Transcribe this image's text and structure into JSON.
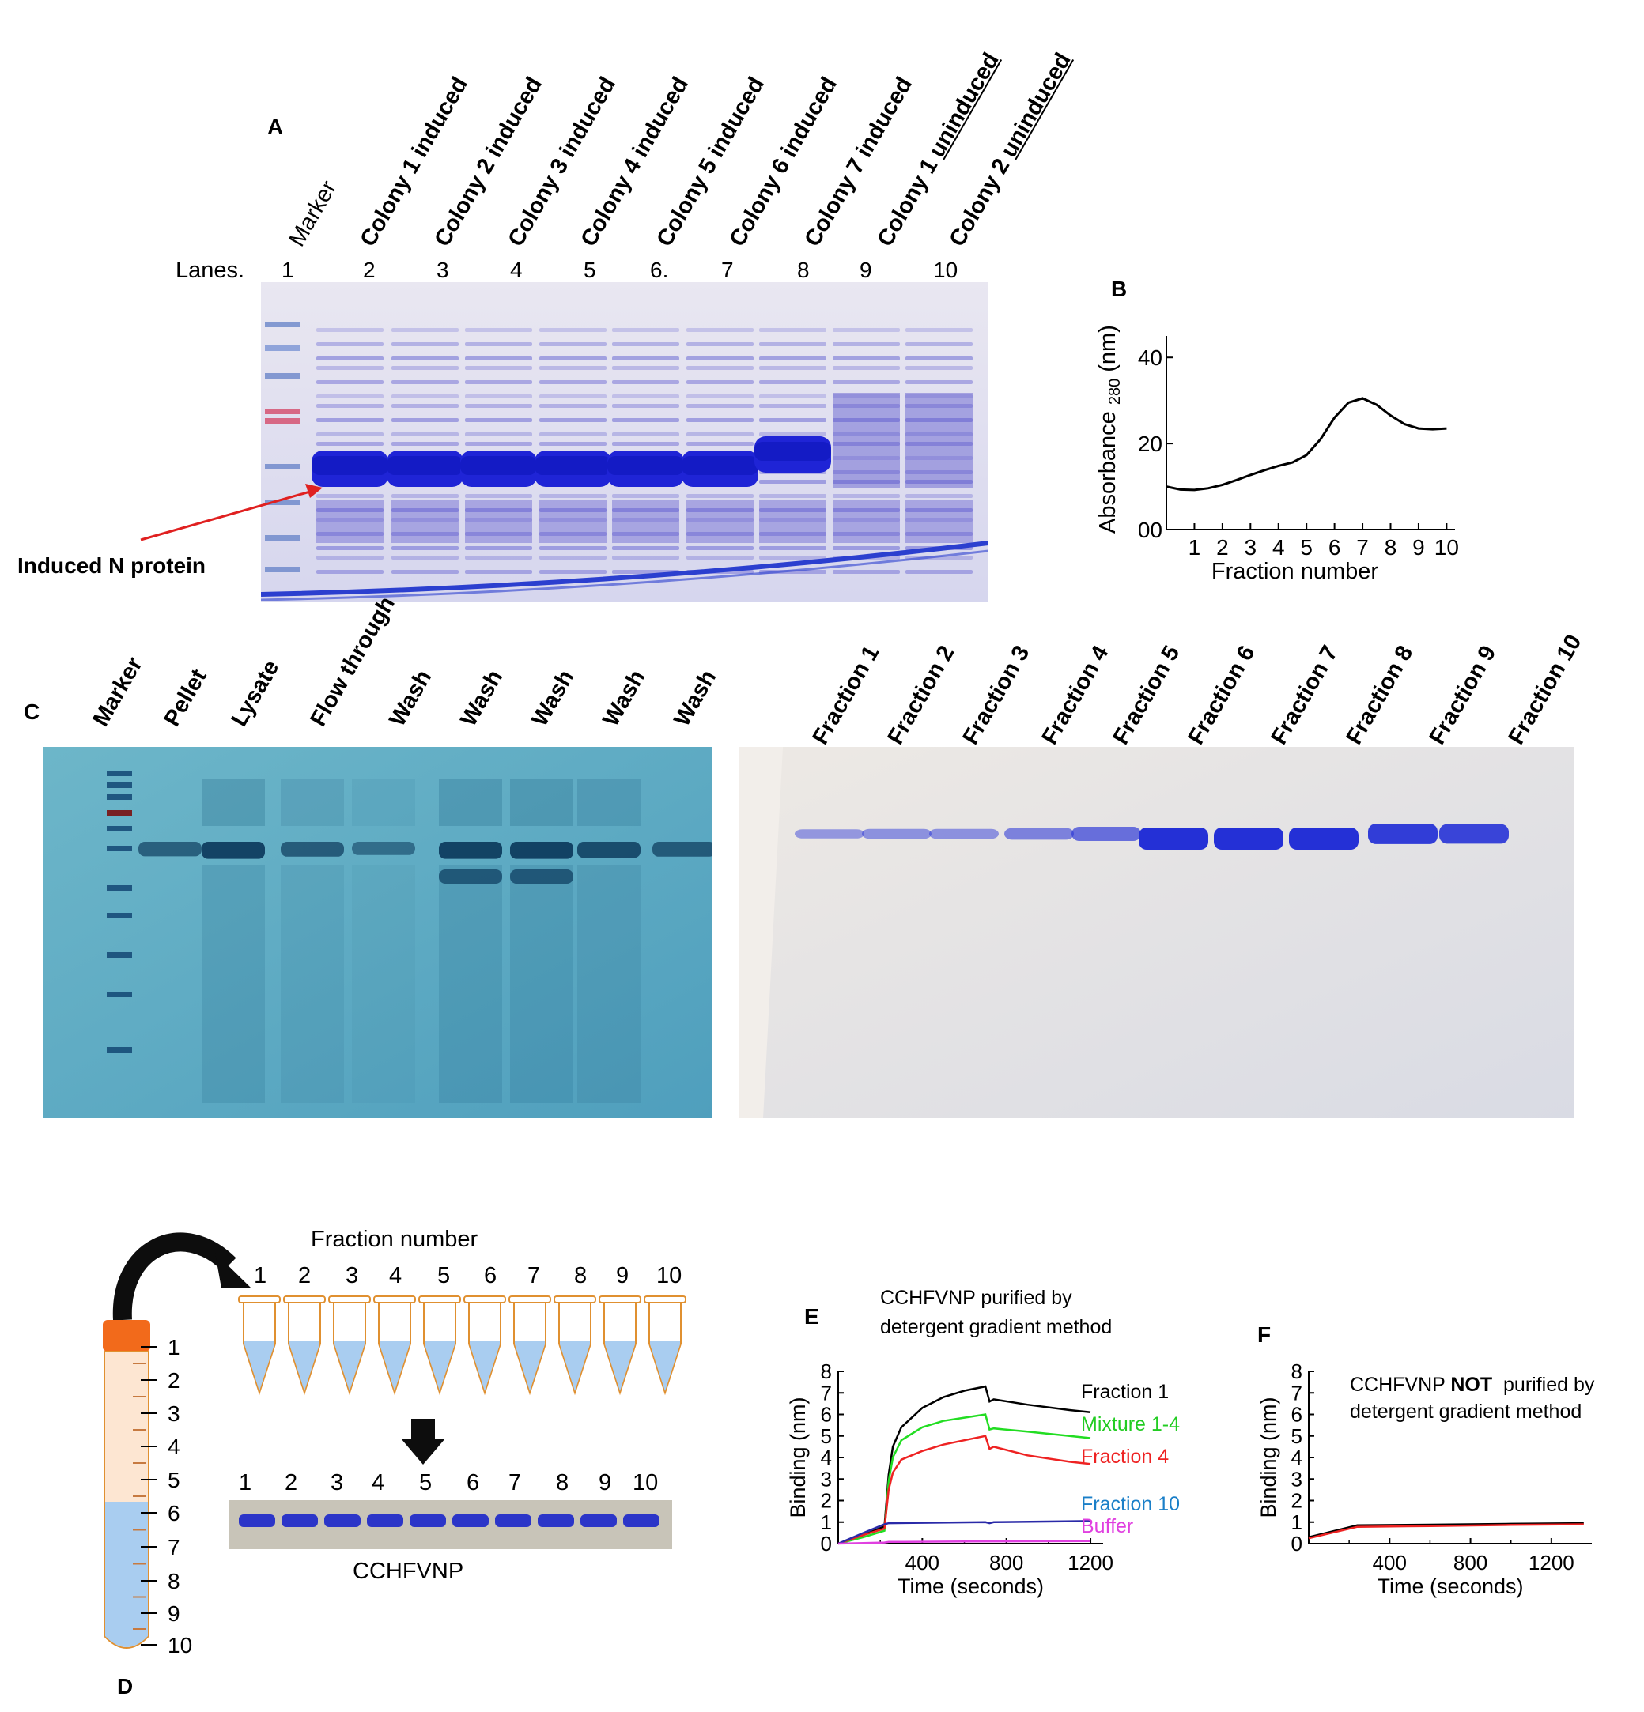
{
  "panel_a": {
    "label": "A",
    "lanes_prefix": "Lanes.",
    "lane_numbers": [
      "1",
      "2",
      "3",
      "4",
      "5",
      "6.",
      "7",
      "8",
      "9",
      "10"
    ],
    "lane_labels": [
      {
        "pre": "Marker",
        "u": "",
        "post": "",
        "bold": false
      },
      {
        "pre": "Colony 1 induced",
        "u": "",
        "post": "",
        "bold": true
      },
      {
        "pre": "Colony 2 induced",
        "u": "",
        "post": "",
        "bold": true
      },
      {
        "pre": "Colony 3 induced",
        "u": "",
        "post": "",
        "bold": true
      },
      {
        "pre": "Colony 4 induced",
        "u": "",
        "post": "",
        "bold": true
      },
      {
        "pre": "Colony 5 induced",
        "u": "",
        "post": "",
        "bold": true
      },
      {
        "pre": "Colony 6 induced",
        "u": "",
        "post": "",
        "bold": true
      },
      {
        "pre": "Colony 7 induced",
        "u": "",
        "post": "",
        "bold": true
      },
      {
        "pre": "Colony 1 ",
        "u": "uninduced",
        "post": "",
        "bold": true
      },
      {
        "pre": "Colony 2 ",
        "u": "uninduced",
        "post": "",
        "bold": true
      }
    ],
    "arrow_label": "Induced N protein",
    "arrow_color": "#e02020"
  },
  "panel_b": {
    "label": "B",
    "chart_data": {
      "type": "line",
      "title": "",
      "xlabel": "Fraction number",
      "ylabel": "Absorbance 280 (nm)",
      "ylabel_main": "Absorbance",
      "ylabel_sub": "280",
      "ylabel_unit": "(nm)",
      "xlim": [
        0,
        10.3
      ],
      "ylim": [
        0,
        45
      ],
      "xticks": [
        "1",
        "2",
        "3",
        "4",
        "5",
        "6",
        "7",
        "8",
        "9",
        "10"
      ],
      "yticks": [
        "00",
        "20",
        "40"
      ],
      "series": [
        {
          "x": [
            0,
            0.5,
            1,
            1.5,
            2,
            2.5,
            3,
            3.5,
            4,
            4.5,
            5,
            5.5,
            6,
            6.5,
            7,
            7.5,
            8,
            8.5,
            9,
            9.5,
            10
          ],
          "y": [
            10,
            9.3,
            9.2,
            9.6,
            10.4,
            11.5,
            12.7,
            13.8,
            14.8,
            15.6,
            17.3,
            21,
            26,
            29.5,
            30.5,
            29,
            26.5,
            24.5,
            23.5,
            23.3,
            23.5
          ]
        }
      ]
    }
  },
  "panel_c": {
    "label": "C",
    "left_labels": [
      "Marker",
      "Pellet",
      "Lysate",
      "Flow through",
      "Wash",
      "Wash",
      "Wash",
      "Wash",
      "Wash"
    ],
    "right_labels": [
      "Fraction 1",
      "Fraction 2",
      "Fraction 3",
      "Fraction 4",
      "Fraction 5",
      "Fraction 6",
      "Fraction 7",
      "Fraction 8",
      "Fraction 9",
      "Fraction 10"
    ],
    "left_band_intensity": [
      0.55,
      0.95,
      0.6,
      0.35,
      0.95,
      0.95,
      0.8,
      0.6
    ],
    "right_band_intensity": [
      0.25,
      0.3,
      0.3,
      0.4,
      0.55,
      1,
      1,
      1,
      0.9,
      0.85
    ]
  },
  "panel_d": {
    "label": "D",
    "title": "Fraction number",
    "tube_numbers": [
      "1",
      "2",
      "3",
      "4",
      "5",
      "6",
      "7",
      "8",
      "9",
      "10"
    ],
    "gel_numbers": [
      "1",
      "2",
      "3",
      "4",
      "5",
      "6",
      "7",
      "8",
      "9",
      "10"
    ],
    "gel_caption": "CCHFVNP",
    "tube_scale": [
      "1",
      "2",
      "3",
      "4",
      "5",
      "6",
      "7",
      "8",
      "9",
      "10"
    ],
    "cap_color": "#f26a1b",
    "liquid_color": "#a9cdf0",
    "orange_fill": "#fde6d2"
  },
  "panel_e": {
    "label": "E",
    "title_line1": "CCHFVNP  purified by",
    "title_line2": "detergent gradient method",
    "chart_data": {
      "type": "line",
      "xlabel": "Time (seconds)",
      "ylabel": "Binding (nm)",
      "xlim": [
        0,
        1260
      ],
      "ylim": [
        0,
        8
      ],
      "xticks": [
        "400",
        "800",
        "1200"
      ],
      "yticks": [
        "0",
        "1",
        "2",
        "3",
        "4",
        "5",
        "6",
        "7",
        "8"
      ],
      "series": [
        {
          "name": "Fraction 1",
          "color": "#000000",
          "x": [
            0,
            120,
            220,
            240,
            260,
            300,
            400,
            500,
            600,
            700,
            720,
            740,
            900,
            1100,
            1200
          ],
          "y": [
            0,
            0.4,
            0.8,
            3.2,
            4.5,
            5.4,
            6.3,
            6.8,
            7.1,
            7.3,
            6.6,
            6.7,
            6.45,
            6.2,
            6.1
          ]
        },
        {
          "name": "Mixture 1-4",
          "color": "#22dd22",
          "x": [
            0,
            120,
            220,
            240,
            260,
            300,
            400,
            500,
            600,
            700,
            720,
            740,
            900,
            1100,
            1200
          ],
          "y": [
            0,
            0.3,
            0.6,
            2.9,
            4,
            4.8,
            5.4,
            5.7,
            5.85,
            6,
            5.3,
            5.35,
            5.2,
            5,
            4.9
          ]
        },
        {
          "name": "Fraction 4",
          "color": "#ee2222",
          "x": [
            0,
            120,
            220,
            240,
            260,
            300,
            400,
            500,
            600,
            700,
            720,
            740,
            900,
            1100,
            1200
          ],
          "y": [
            0,
            0.4,
            0.7,
            2.5,
            3.3,
            3.9,
            4.3,
            4.6,
            4.8,
            5,
            4.4,
            4.5,
            4.1,
            3.8,
            3.7
          ]
        },
        {
          "name": "Fraction 10",
          "color": "#2a2aa8",
          "x": [
            0,
            120,
            220,
            240,
            400,
            700,
            720,
            740,
            1200
          ],
          "y": [
            0,
            0.5,
            0.9,
            0.95,
            0.97,
            1.0,
            0.95,
            1.0,
            1.05
          ]
        },
        {
          "name": "Buffer",
          "color": "#e040e0",
          "x": [
            0,
            220,
            240,
            600,
            1200
          ],
          "y": [
            0,
            0.05,
            0.08,
            0.1,
            0.12
          ]
        }
      ],
      "legend_colors": [
        "#000000",
        "#22cc22",
        "#ee2222",
        "#1a7fc8",
        "#e040e0"
      ]
    }
  },
  "panel_f": {
    "label": "F",
    "title_line1_pre": "CCHFVNP ",
    "title_line1_bold": "NOT",
    "title_line1_post": "  purified by",
    "title_line2": "detergent gradient method",
    "chart_data": {
      "type": "line",
      "xlabel": "Time (seconds)",
      "ylabel": "Binding (nm)",
      "xlim": [
        0,
        1400
      ],
      "ylim": [
        0,
        8
      ],
      "xticks": [
        "400",
        "800",
        "1200"
      ],
      "yticks": [
        "0",
        "1",
        "2",
        "3",
        "4",
        "5",
        "6",
        "7",
        "8"
      ],
      "series": [
        {
          "color": "#000000",
          "x": [
            0,
            240,
            600,
            1000,
            1360
          ],
          "y": [
            0.3,
            0.85,
            0.88,
            0.92,
            0.95
          ]
        },
        {
          "color": "#ee2222",
          "x": [
            0,
            240,
            600,
            1000,
            1360
          ],
          "y": [
            0.25,
            0.78,
            0.82,
            0.87,
            0.9
          ]
        }
      ]
    }
  }
}
